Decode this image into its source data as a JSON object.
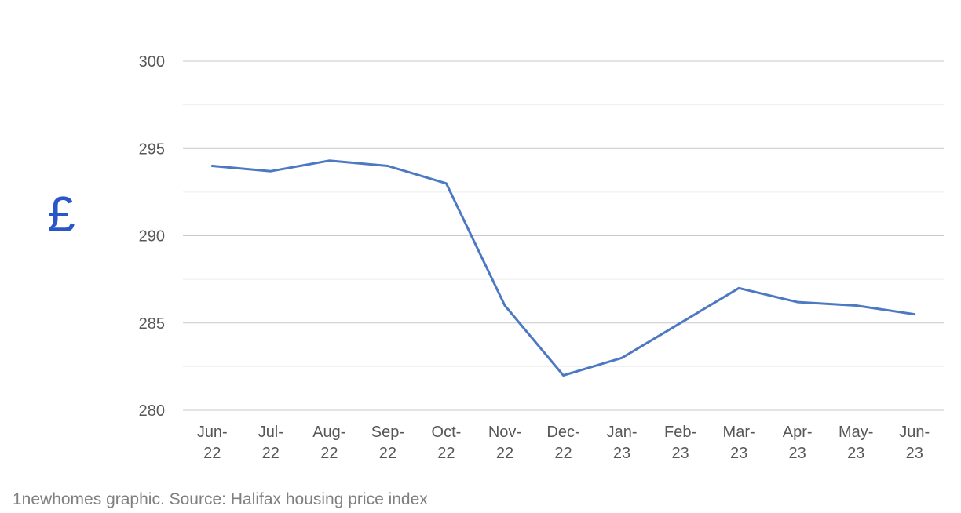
{
  "chart_data": {
    "type": "line",
    "categories": [
      "Jun-22",
      "Jul-22",
      "Aug-22",
      "Sep-22",
      "Oct-22",
      "Nov-22",
      "Dec-22",
      "Jan-23",
      "Feb-23",
      "Mar-23",
      "Apr-23",
      "May-23",
      "Jun-23"
    ],
    "series": [
      {
        "name": "Halifax housing price index",
        "values": [
          294,
          293.7,
          294.3,
          294,
          293,
          286,
          282,
          283,
          285,
          287,
          286.2,
          286,
          285.5
        ]
      }
    ],
    "title": "",
    "xlabel": "",
    "ylabel": "£",
    "ylim": [
      280,
      300
    ],
    "yticks": [
      280,
      285,
      290,
      295,
      300
    ],
    "minor_gridline_step": 2.5,
    "grid": true,
    "legend_position": "none"
  },
  "footer": {
    "text": "1newhomes graphic. Source: Halifax housing price index"
  },
  "colors": {
    "line": "#4d79c2",
    "pound_symbol": "#2a56c6",
    "axis_label": "#575757",
    "grid_major": "#c9c9c9",
    "grid_minor": "#eeeeee",
    "footer_text": "#7f7f7f",
    "background": "#ffffff"
  }
}
